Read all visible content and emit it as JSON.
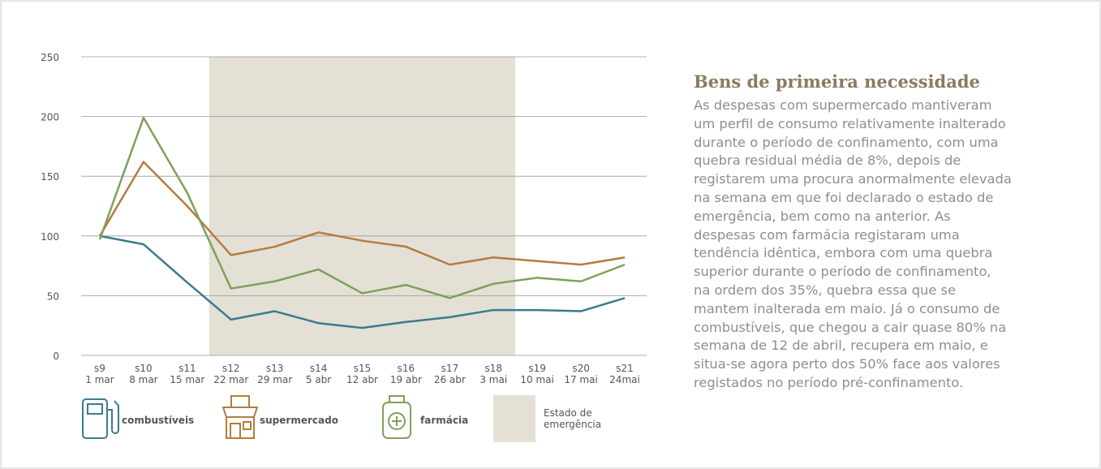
{
  "chart_data": {
    "type": "line",
    "categories": [
      "s9",
      "s10",
      "s11",
      "s12",
      "s13",
      "s14",
      "s15",
      "s16",
      "s17",
      "s18",
      "s19",
      "s20",
      "s21"
    ],
    "dates": [
      "1 mar",
      "8 mar",
      "15 mar",
      "22 mar",
      "29 mar",
      "5 abr",
      "12 abr",
      "19 abr",
      "26 abr",
      "3 mai",
      "10 mai",
      "17 mai",
      "24mai"
    ],
    "series": [
      {
        "name": "combustíveis",
        "color": "#3b7b8e",
        "values": [
          100,
          93,
          61,
          30,
          37,
          27,
          23,
          28,
          32,
          38,
          38,
          37,
          48
        ]
      },
      {
        "name": "supermercado",
        "color": "#b47c3f",
        "values": [
          100,
          162,
          125,
          84,
          91,
          103,
          96,
          91,
          76,
          82,
          79,
          76,
          82
        ]
      },
      {
        "name": "farmácia",
        "color": "#7fa05a",
        "values": [
          97,
          199,
          136,
          56,
          62,
          72,
          52,
          59,
          48,
          60,
          65,
          62,
          76
        ]
      }
    ],
    "ylim": [
      0,
      250
    ],
    "yticks": [
      0,
      50,
      100,
      150,
      200,
      250
    ],
    "grid": true,
    "shade": {
      "label_lines": [
        "Estado de",
        "emergência"
      ],
      "from": "s12",
      "to": "s18",
      "color": "#e4e0d6"
    }
  },
  "text": {
    "title": "Bens de primeira necessidade",
    "lines": [
      "As despesas com supermercado mantiveram",
      "um perfil de consumo relativamente inalterado",
      "durante o período de confinamento, com uma",
      "quebra residual média de 8%, depois de",
      "registarem uma procura anormalmente elevada",
      "na semana em que foi declarado o estado de",
      "emergência, bem como na anterior. As",
      "despesas com farmácia registaram uma",
      "tendência idêntica, embora com uma quebra",
      "superior durante o período de confinamento,",
      "na ordem dos 35%, quebra essa que se",
      "mantem inalterada em maio. Já o consumo de",
      "combustíveis, que chegou a cair quase 80% na",
      "semana de 12 de abril, recupera em maio, e",
      "situa-se agora perto dos 50% face aos valores",
      "registados no período pré-confinamento."
    ]
  }
}
